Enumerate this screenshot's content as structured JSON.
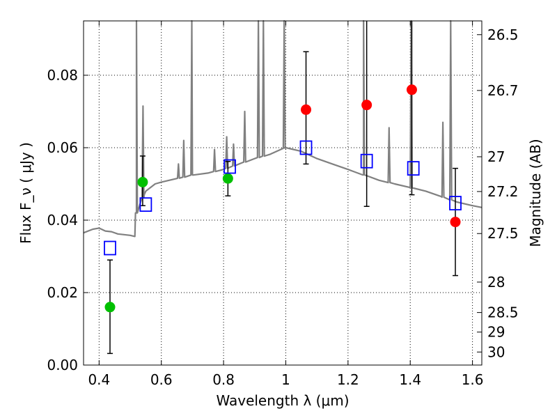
{
  "chart_data": {
    "type": "scatter",
    "xlabel": "Wavelength  λ (μm)",
    "ylabel": "Flux  F_ν  ( μJy )",
    "y2label": "Magnitude (AB)",
    "xlim": [
      0.35,
      1.63
    ],
    "ylim": [
      0.0,
      0.095
    ],
    "grid": true,
    "x_ticks": [
      0.4,
      0.6,
      0.8,
      1.0,
      1.2,
      1.4,
      1.6
    ],
    "x_tick_labels": [
      "0.4",
      "0.6",
      "0.8",
      "1",
      "1.2",
      "1.4",
      "1.6"
    ],
    "y_ticks": [
      0.0,
      0.02,
      0.04,
      0.06,
      0.08
    ],
    "y_tick_labels": [
      "0.00",
      "0.02",
      "0.04",
      "0.06",
      "0.08"
    ],
    "y2_ticks": [
      {
        "label": "26.5",
        "flux": 0.0912
      },
      {
        "label": "26.7",
        "flux": 0.0758
      },
      {
        "label": "27",
        "flux": 0.0575
      },
      {
        "label": "27.2",
        "flux": 0.0479
      },
      {
        "label": "27.5",
        "flux": 0.0363
      },
      {
        "label": "28",
        "flux": 0.0229
      },
      {
        "label": "28.5",
        "flux": 0.0145
      },
      {
        "label": "29",
        "flux": 0.0091
      },
      {
        "label": "30",
        "flux": 0.0036
      }
    ],
    "series": [
      {
        "marker": "circle",
        "color": "#00c000",
        "points": [
          {
            "x": 0.435,
            "y": 0.016,
            "err_low": 0.0128,
            "err_high": 0.013
          },
          {
            "x": 0.54,
            "y": 0.0505,
            "err_low": 0.0065,
            "err_high": 0.0072
          },
          {
            "x": 0.814,
            "y": 0.0515,
            "err_low": 0.0048,
            "err_high": 0.0047
          }
        ]
      },
      {
        "marker": "circle",
        "color": "#ff0000",
        "points": [
          {
            "x": 1.065,
            "y": 0.0705,
            "err_low": 0.015,
            "err_high": 0.016
          },
          {
            "x": 1.26,
            "y": 0.0718,
            "err_low": 0.028,
            "err_high": 0.03
          },
          {
            "x": 1.405,
            "y": 0.076,
            "err_low": 0.029,
            "err_high": 0.03
          },
          {
            "x": 1.545,
            "y": 0.0395,
            "err_low": 0.0148,
            "err_high": 0.0148
          }
        ]
      },
      {
        "marker": "open-square",
        "color": "#0000ff",
        "points": [
          {
            "x": 0.435,
            "y": 0.0323
          },
          {
            "x": 0.55,
            "y": 0.0443
          },
          {
            "x": 0.82,
            "y": 0.0548
          },
          {
            "x": 1.065,
            "y": 0.06
          },
          {
            "x": 1.26,
            "y": 0.0563
          },
          {
            "x": 1.41,
            "y": 0.0543
          },
          {
            "x": 1.545,
            "y": 0.0447
          }
        ]
      },
      {
        "type": "line",
        "color": "#808080",
        "x": [
          0.35,
          0.38,
          0.4,
          0.42,
          0.44,
          0.46,
          0.48,
          0.5,
          0.515,
          0.52,
          0.53,
          0.545,
          0.55,
          0.58,
          0.6,
          0.65,
          0.68,
          0.7,
          0.75,
          0.8,
          0.85,
          0.9,
          0.95,
          1.0,
          1.05,
          1.1,
          1.15,
          1.2,
          1.25,
          1.3,
          1.35,
          1.4,
          1.45,
          1.5,
          1.55,
          1.6,
          1.63
        ],
        "y": [
          0.0365,
          0.0375,
          0.0378,
          0.037,
          0.0368,
          0.0362,
          0.036,
          0.0358,
          0.0355,
          0.042,
          0.044,
          0.047,
          0.048,
          0.05,
          0.0505,
          0.0515,
          0.052,
          0.0525,
          0.053,
          0.054,
          0.0555,
          0.057,
          0.0582,
          0.06,
          0.059,
          0.057,
          0.0555,
          0.054,
          0.0525,
          0.051,
          0.05,
          0.049,
          0.048,
          0.0465,
          0.045,
          0.044,
          0.0435
        ],
        "emission_lines": [
          {
            "x": 0.52,
            "peak": 0.095
          },
          {
            "x": 0.541,
            "peak": 0.0715
          },
          {
            "x": 0.655,
            "peak": 0.0555
          },
          {
            "x": 0.672,
            "peak": 0.062
          },
          {
            "x": 0.698,
            "peak": 0.095
          },
          {
            "x": 0.771,
            "peak": 0.0595
          },
          {
            "x": 0.81,
            "peak": 0.063
          },
          {
            "x": 0.832,
            "peak": 0.061
          },
          {
            "x": 0.868,
            "peak": 0.07
          },
          {
            "x": 0.912,
            "peak": 0.095
          },
          {
            "x": 0.928,
            "peak": 0.095
          },
          {
            "x": 0.995,
            "peak": 0.095
          },
          {
            "x": 1.25,
            "peak": 0.095
          },
          {
            "x": 1.332,
            "peak": 0.0655
          },
          {
            "x": 1.403,
            "peak": 0.095
          },
          {
            "x": 1.505,
            "peak": 0.067
          },
          {
            "x": 1.53,
            "peak": 0.095
          }
        ]
      }
    ]
  }
}
